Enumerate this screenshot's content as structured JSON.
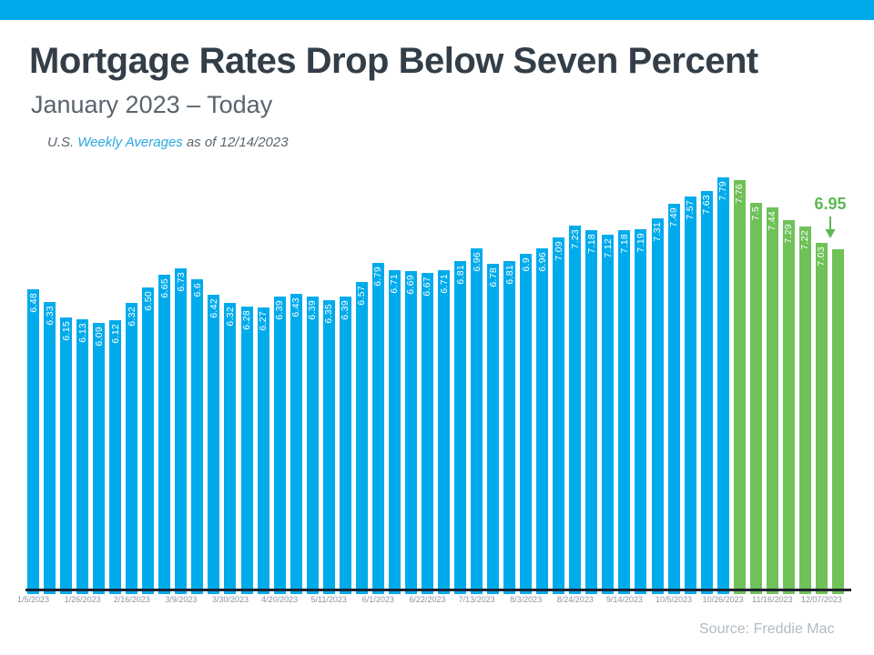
{
  "banner": {
    "color": "#00ABEC"
  },
  "header": {
    "title": "Mortgage Rates Drop Below Seven Percent",
    "subtitle": "January 2023 – Today",
    "note": {
      "prefix": "U.S.",
      "link": "Weekly Averages",
      "suffix": "as of 12/14/2023"
    }
  },
  "chart_data": {
    "type": "bar",
    "title": "Mortgage Rates Drop Below Seven Percent",
    "subtitle": "January 2023 – Today",
    "unit": "percent",
    "values": [
      6.48,
      6.33,
      6.15,
      6.13,
      6.09,
      6.12,
      6.32,
      6.5,
      6.65,
      6.73,
      6.6,
      6.42,
      6.32,
      6.28,
      6.27,
      6.39,
      6.43,
      6.39,
      6.35,
      6.39,
      6.57,
      6.79,
      6.71,
      6.69,
      6.67,
      6.71,
      6.81,
      6.96,
      6.78,
      6.81,
      6.9,
      6.96,
      7.09,
      7.23,
      7.18,
      7.12,
      7.18,
      7.19,
      7.31,
      7.49,
      7.57,
      7.63,
      7.79,
      7.76,
      7.5,
      7.44,
      7.29,
      7.22,
      7.03,
      6.95
    ],
    "bar_labels": [
      "6.48",
      "6.33",
      "6.15",
      "6.13",
      "6.09",
      "6.12",
      "6.32",
      "6.50",
      "6.65",
      "6.73",
      "6.6",
      "6.42",
      "6.32",
      "6.28",
      "6.27",
      "6.39",
      "6.43",
      "6.39",
      "6.35",
      "6.39",
      "6.57",
      "6.79",
      "6.71",
      "6.69",
      "6.67",
      "6.71",
      "6.81",
      "6.96",
      "6.78",
      "6.81",
      "6.9",
      "6.96",
      "7.09",
      "7.23",
      "7.18",
      "7.12",
      "7.18",
      "7.19",
      "7.31",
      "7.49",
      "7.57",
      "7.63",
      "7.79",
      "7.76",
      "7.5",
      "7.44",
      "7.29",
      "7.22",
      "7.03",
      ""
    ],
    "x_tick_labels": [
      "1/5/2023",
      "1/26/2023",
      "2/16/2023",
      "3/9/2023",
      "3/30/2023",
      "4/20/2023",
      "5/11/2023",
      "6/1/2023",
      "6/22/2023",
      "7/13/2023",
      "8/3/2023",
      "8/24/2023",
      "9/14/2023",
      "10/5/2023",
      "10/26/2023",
      "11/16/2023",
      "12/07/2023"
    ],
    "x_tick_step": 3,
    "blue_bar_count": 43,
    "colors": {
      "blue": "#00ABEC",
      "green": "#6FC158",
      "annotation_green": "#5CB854",
      "axis_line": "#1B2430"
    },
    "annotation": {
      "label": "6.95",
      "target_bar_index": 49
    },
    "ylim_implied": [
      2.955,
      7.9
    ],
    "grid": false,
    "legend": false
  },
  "footer": {
    "source": "Source: Freddie Mac"
  }
}
